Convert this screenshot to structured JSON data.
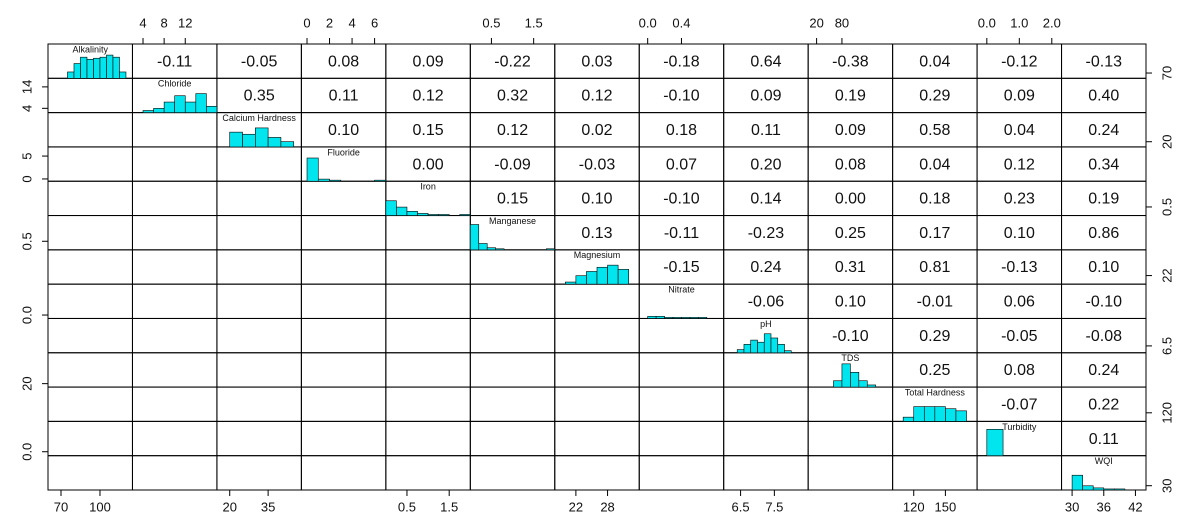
{
  "chart_data": {
    "type": "pairs",
    "hist_color": "#00e5ee",
    "hist_ylim": [
      0,
      26
    ],
    "variables": [
      {
        "name": "Alkalinity",
        "lim": [
          60,
          125
        ],
        "xticks": [
          70,
          100
        ],
        "yticks": [
          70
        ],
        "bins": [
          75,
          80,
          85,
          90,
          95,
          100,
          105,
          110,
          115,
          120
        ],
        "counts": [
          6,
          14,
          20,
          18,
          19,
          20,
          22,
          20,
          6
        ]
      },
      {
        "name": "Chloride",
        "lim": [
          2,
          18
        ],
        "xticks": [
          4,
          8,
          12
        ],
        "yticks": [
          4,
          14
        ],
        "bins": [
          4,
          6,
          8,
          10,
          12,
          14,
          16,
          18
        ],
        "counts": [
          2,
          4,
          10,
          16,
          10,
          18,
          6
        ]
      },
      {
        "name": "Calcium Hardness",
        "lim": [
          15,
          48
        ],
        "xticks": [
          20,
          35
        ],
        "yticks": [
          20
        ],
        "bins": [
          20,
          25,
          30,
          35,
          40,
          45
        ],
        "counts": [
          14,
          12,
          18,
          9,
          5
        ]
      },
      {
        "name": "Fluoride",
        "lim": [
          -0.5,
          7
        ],
        "xticks": [
          0,
          2,
          4,
          6
        ],
        "yticks": [
          0,
          5
        ],
        "bins": [
          0,
          1,
          2,
          3,
          4,
          5,
          6,
          7
        ],
        "counts": [
          22,
          2,
          1,
          0,
          0,
          0,
          1
        ]
      },
      {
        "name": "Iron",
        "lim": [
          0,
          2
        ],
        "xticks": [
          0.5,
          1.5
        ],
        "yticks": [
          0.5
        ],
        "bins": [
          0,
          0.25,
          0.5,
          0.75,
          1,
          1.25,
          1.5,
          1.75,
          2
        ],
        "counts": [
          14,
          8,
          4,
          2,
          1,
          1,
          0,
          1
        ]
      },
      {
        "name": "Manganese",
        "lim": [
          0,
          2
        ],
        "xticks": [
          0.5,
          1.5
        ],
        "yticks": [
          0.5
        ],
        "bins": [
          0,
          0.2,
          0.4,
          0.6,
          0.8,
          1,
          1.2,
          1.4,
          1.6,
          1.8,
          2
        ],
        "counts": [
          24,
          6,
          2,
          1,
          0,
          0,
          0,
          0,
          0,
          1
        ]
      },
      {
        "name": "Magnesium",
        "lim": [
          18,
          34
        ],
        "xticks": [
          22,
          28
        ],
        "yticks": [
          22
        ],
        "bins": [
          20,
          22,
          24,
          26,
          28,
          30,
          32
        ],
        "counts": [
          2,
          8,
          12,
          16,
          18,
          14
        ]
      },
      {
        "name": "Nitrate",
        "lim": [
          -0.1,
          0.9
        ],
        "xticks": [
          {
            "value": 0,
            "label": "0.0"
          },
          0.4
        ],
        "yticks": [
          {
            "value": 0,
            "label": "0.0"
          }
        ],
        "bins": [
          0,
          0.1,
          0.2,
          0.3,
          0.4,
          0.5,
          0.6,
          0.7,
          0.8
        ],
        "counts": [
          2,
          2,
          1,
          1,
          1,
          1,
          1,
          0
        ]
      },
      {
        "name": "pH",
        "lim": [
          6,
          8.5
        ],
        "xticks": [
          6.5,
          7.5
        ],
        "yticks": [
          6.5
        ],
        "bins": [
          6.4,
          6.6,
          6.8,
          7,
          7.2,
          7.4,
          7.6,
          7.8,
          8
        ],
        "counts": [
          3,
          8,
          12,
          10,
          18,
          14,
          8,
          2
        ]
      },
      {
        "name": "TDS",
        "lim": [
          0,
          200
        ],
        "xticks": [
          20,
          80
        ],
        "yticks": [
          20
        ],
        "bins": [
          60,
          80,
          100,
          120,
          140,
          160
        ],
        "counts": [
          6,
          22,
          14,
          6,
          2
        ]
      },
      {
        "name": "Total Hardness",
        "lim": [
          100,
          180
        ],
        "xticks": [
          120,
          150
        ],
        "yticks": [
          120
        ],
        "bins": [
          110,
          120,
          130,
          140,
          150,
          160,
          170
        ],
        "counts": [
          4,
          14,
          14,
          14,
          12,
          10
        ]
      },
      {
        "name": "Turbidity",
        "lim": [
          -0.3,
          2.3
        ],
        "xticks": [
          {
            "value": 0,
            "label": "0.0"
          },
          {
            "value": 1,
            "label": "1.0"
          },
          {
            "value": 2,
            "label": "2.0"
          }
        ],
        "yticks": [
          {
            "value": 0,
            "label": "0.0"
          }
        ],
        "bins": [
          0,
          0.5,
          1,
          1.5,
          2
        ],
        "counts": [
          25,
          0,
          0,
          0
        ]
      },
      {
        "name": "WQI",
        "lim": [
          28,
          44
        ],
        "xticks": [
          30,
          36,
          42
        ],
        "yticks": [
          30
        ],
        "bins": [
          30,
          32,
          34,
          36,
          38,
          40,
          42,
          44
        ],
        "counts": [
          14,
          4,
          2,
          1,
          1,
          0,
          0
        ]
      }
    ],
    "correlations": [
      [
        -0.11,
        -0.05,
        0.08,
        0.09,
        -0.22,
        0.03,
        -0.18,
        0.64,
        -0.38,
        0.04,
        -0.12,
        -0.13
      ],
      [
        0.35,
        0.11,
        0.12,
        0.32,
        0.12,
        {
          "value": -0.1,
          "label": "-0.10"
        },
        0.09,
        0.19,
        0.29,
        0.09,
        {
          "value": 0.4,
          "label": "0.40"
        }
      ],
      [
        {
          "value": 0.1,
          "label": "0.10"
        },
        0.15,
        0.12,
        0.02,
        0.18,
        0.11,
        0.09,
        0.58,
        0.04,
        0.24
      ],
      [
        {
          "value": 0,
          "label": "0.00"
        },
        -0.09,
        -0.03,
        0.07,
        {
          "value": 0.2,
          "label": "0.20"
        },
        0.08,
        0.04,
        0.12,
        0.34
      ],
      [
        0.15,
        {
          "value": 0.1,
          "label": "0.10"
        },
        {
          "value": -0.1,
          "label": "-0.10"
        },
        0.14,
        {
          "value": 0,
          "label": "0.00"
        },
        0.18,
        0.23,
        0.19
      ],
      [
        0.13,
        -0.11,
        -0.23,
        0.25,
        0.17,
        {
          "value": 0.1,
          "label": "0.10"
        },
        0.86
      ],
      [
        -0.15,
        0.24,
        0.31,
        0.81,
        -0.13,
        {
          "value": 0.1,
          "label": "0.10"
        }
      ],
      [
        -0.06,
        {
          "value": 0.1,
          "label": "0.10"
        },
        -0.01,
        0.06,
        {
          "value": -0.1,
          "label": "-0.10"
        }
      ],
      [
        {
          "value": -0.1,
          "label": "-0.10"
        },
        0.29,
        -0.05,
        -0.08
      ],
      [
        0.25,
        0.08,
        0.24
      ],
      [
        -0.07,
        0.22
      ],
      [
        0.11
      ]
    ]
  }
}
